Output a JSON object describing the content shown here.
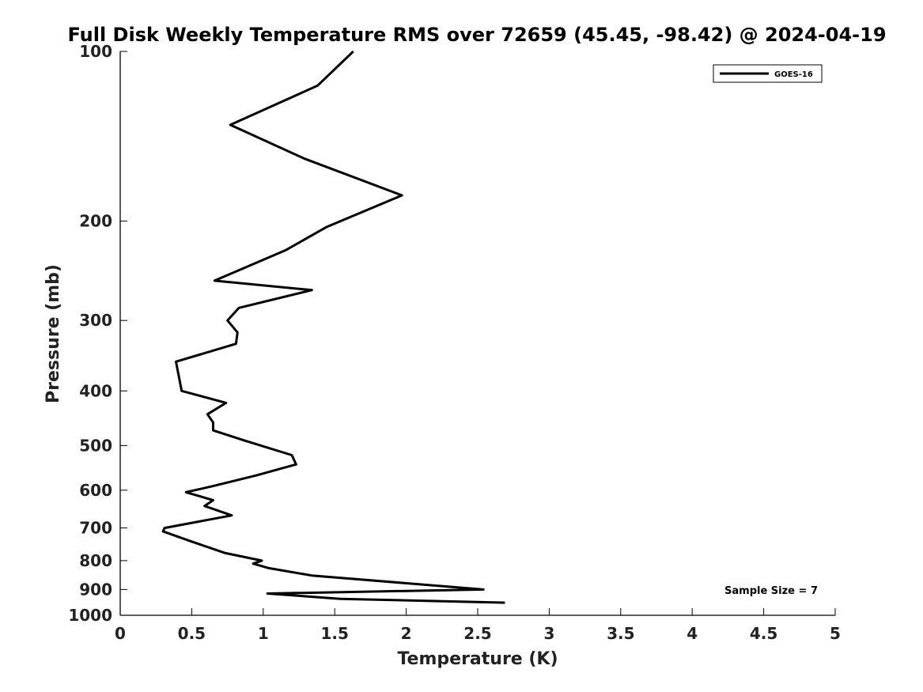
{
  "chart_data": {
    "type": "line",
    "title": "Full Disk Weekly Temperature RMS over 72659 (45.45, -98.42) @ 2024-04-19",
    "xlabel": "Temperature (K)",
    "ylabel": "Pressure (mb)",
    "xlim": [
      0,
      5
    ],
    "ylim": [
      100,
      1000
    ],
    "y_scale": "log",
    "y_reversed": true,
    "x_ticks": [
      "0",
      "0.5",
      "1",
      "1.5",
      "2",
      "2.5",
      "3",
      "3.5",
      "4",
      "4.5",
      "5"
    ],
    "y_ticks": [
      "100",
      "200",
      "300",
      "400",
      "500",
      "600",
      "700",
      "800",
      "900",
      "1000"
    ],
    "grid": false,
    "legend_position": "top-right",
    "series": [
      {
        "name": "GOES-16",
        "color": "#000000",
        "x": [
          1.63,
          1.38,
          0.77,
          1.29,
          1.97,
          1.44,
          1.16,
          0.66,
          1.34,
          0.83,
          0.75,
          0.82,
          0.81,
          0.39,
          0.43,
          0.74,
          0.61,
          0.65,
          0.65,
          0.87,
          1.2,
          1.23,
          0.95,
          0.65,
          0.46,
          0.65,
          0.59,
          0.78,
          0.31,
          0.3,
          0.5,
          0.73,
          0.99,
          0.93,
          1.04,
          1.34,
          2.54,
          1.03,
          1.54,
          2.69
        ],
        "y": [
          100,
          115,
          135,
          155,
          180,
          205,
          225,
          255,
          265,
          285,
          300,
          315,
          330,
          355,
          400,
          420,
          440,
          455,
          470,
          490,
          520,
          540,
          565,
          590,
          605,
          625,
          640,
          665,
          700,
          710,
          740,
          775,
          800,
          810,
          825,
          850,
          900,
          915,
          935,
          950
        ]
      }
    ],
    "annotations": [
      "Sample Size = 7"
    ]
  }
}
